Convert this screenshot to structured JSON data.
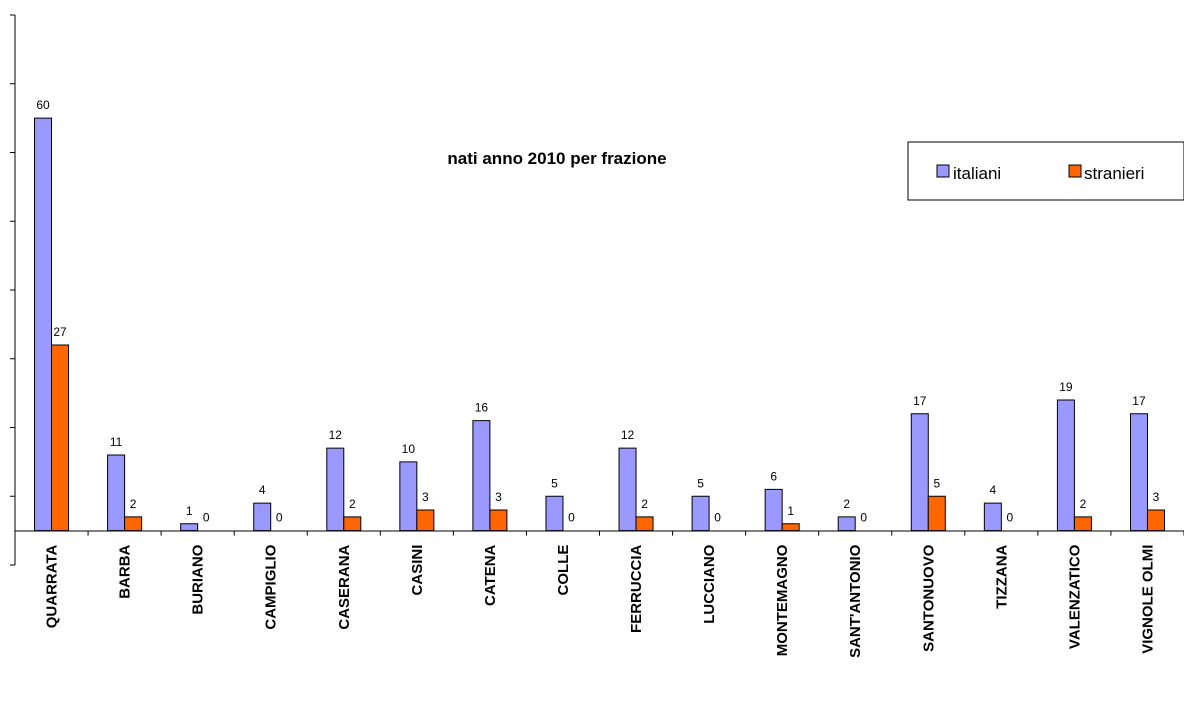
{
  "chart_data": {
    "type": "bar",
    "title": "nati anno 2010 per frazione",
    "categories": [
      "QUARRATA",
      "BARBA",
      "BURIANO",
      "CAMPIGLIO",
      "CASERANA",
      "CASINI",
      "CATENA",
      "COLLE",
      "FERRUCCIA",
      "LUCCIANO",
      "MONTEMAGNO",
      "SANT'ANTONIO",
      "SANTONUOVO",
      "TIZZANA",
      "VALENZATICO",
      "VIGNOLE OLMI"
    ],
    "series": [
      {
        "name": "italiani",
        "color": "#9999ff",
        "values": [
          60,
          11,
          1,
          4,
          12,
          10,
          16,
          5,
          12,
          5,
          6,
          2,
          17,
          4,
          19,
          17
        ]
      },
      {
        "name": "stranieri",
        "color": "#ff6600",
        "values": [
          27,
          2,
          0,
          0,
          2,
          3,
          3,
          0,
          2,
          0,
          1,
          0,
          5,
          0,
          2,
          3
        ]
      }
    ],
    "ylim": [
      -5,
      75
    ],
    "ytick_step": 10,
    "y_tick_labels_shown": false,
    "grid": false,
    "legend_position": "top-right",
    "xlabel": "",
    "ylabel": ""
  }
}
